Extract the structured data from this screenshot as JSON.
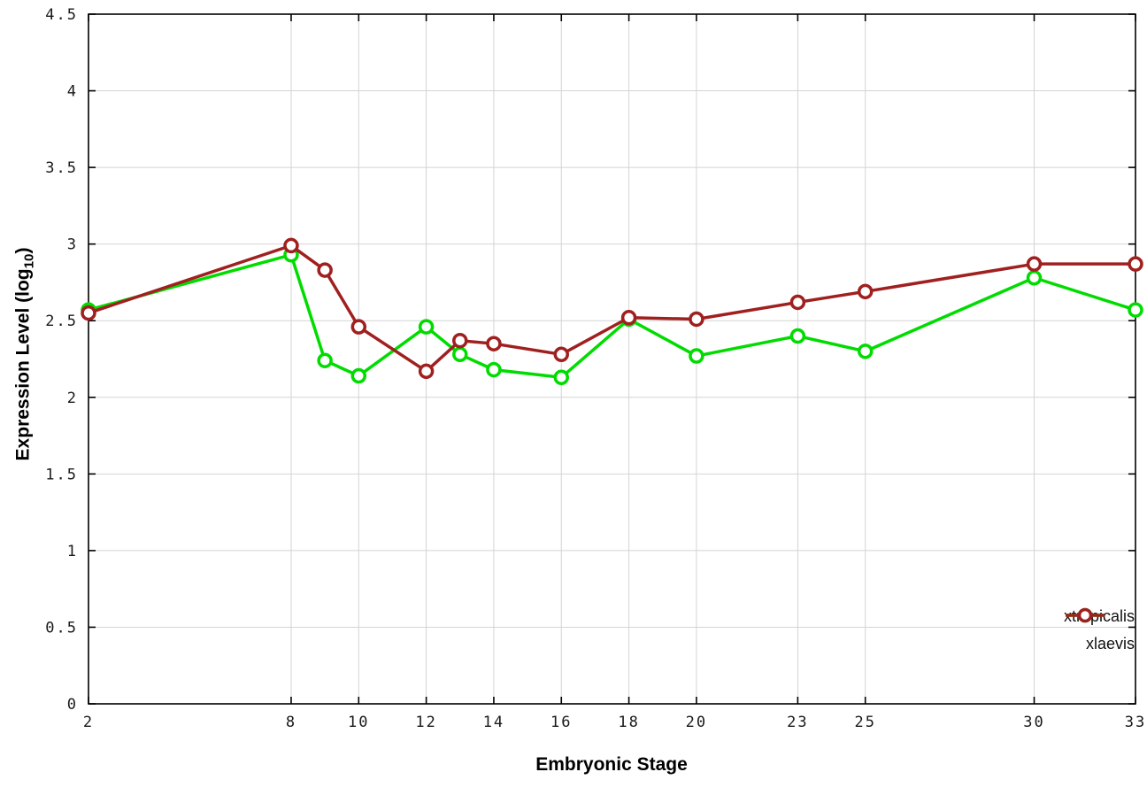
{
  "chart_data": {
    "type": "line",
    "title": "",
    "xlabel": "Embryonic Stage",
    "ylabel": "Expression Level (log10)",
    "ylabel_parts": {
      "main": "Expression Level (log",
      "sub": "10",
      "close": ")"
    },
    "x": [
      2,
      8,
      9,
      10,
      12,
      13,
      14,
      16,
      18,
      20,
      23,
      25,
      30,
      33
    ],
    "series": [
      {
        "name": "xtropicalis",
        "color": "#00dc00",
        "values": [
          2.57,
          2.93,
          2.24,
          2.14,
          2.46,
          2.28,
          2.18,
          2.13,
          2.51,
          2.27,
          2.4,
          2.3,
          2.78,
          2.57
        ]
      },
      {
        "name": "xlaevis",
        "color": "#a02020",
        "values": [
          2.55,
          2.99,
          2.83,
          2.46,
          2.17,
          2.37,
          2.35,
          2.28,
          2.52,
          2.51,
          2.62,
          2.69,
          2.87,
          2.87
        ]
      }
    ],
    "xticks": [
      2,
      8,
      10,
      12,
      14,
      16,
      18,
      20,
      23,
      25,
      30,
      33
    ],
    "yticks": [
      0,
      0.5,
      1,
      1.5,
      2,
      2.5,
      3,
      3.5,
      4,
      4.5
    ],
    "xlim": [
      2,
      33
    ],
    "ylim": [
      0,
      4.5
    ],
    "grid": true,
    "grid_color": "#d4d4d4",
    "legend_position": "bottom-right",
    "marker": "open-circle"
  }
}
